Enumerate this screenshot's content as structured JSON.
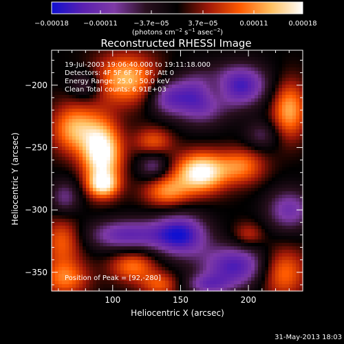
{
  "chart_data": {
    "type": "heatmap",
    "title": "Reconstructed RHESSI Image",
    "xlabel": "Heliocentric X (arcsec)",
    "ylabel": "Heliocentric Y (arcsec)",
    "xlim": [
      55,
      240
    ],
    "ylim": [
      -365,
      -172
    ],
    "x_ticks": [
      100,
      150,
      200
    ],
    "y_ticks": [
      -350,
      -300,
      -250,
      -200
    ],
    "colorbar": {
      "range": [
        -0.00018,
        0.00018
      ],
      "tick_values": [
        -0.00018,
        -0.00011,
        -3.7e-05,
        3.7e-05,
        0.00011,
        0.00018
      ],
      "tick_labels": [
        "−0.00018",
        "−0.00011",
        "−3.7e−05",
        "3.7e−05",
        "0.00011",
        "0.00018"
      ],
      "unit_main": "(photons cm",
      "unit_exp1": "−2",
      "unit_mid": " s",
      "unit_exp2": "−1",
      "unit_mid2": " asec",
      "unit_exp3": "−2",
      "unit_end": ")",
      "colors": [
        "#1010d0",
        "#5a20b0",
        "#7e3aa6",
        "#2a1020",
        "#000000",
        "#a01808",
        "#ff5a00",
        "#ffc060",
        "#ffffff"
      ]
    },
    "annotations": [
      "19-Jul-2003 19:06:40.000 to 19:11:18.000",
      "Detectors: 4F 5F 6F 7F 8F, Att 0",
      "Energy Range: 25.0 - 50.0 keV",
      "Clean    Total counts: 6.91E+03"
    ],
    "peak_label": "Position of Peak = [92,-280]",
    "peak_position": [
      92,
      -280
    ],
    "components": [
      {
        "x": 92,
        "y": -255,
        "sx": 10,
        "sy": 18,
        "amp": 1.1
      },
      {
        "x": 93,
        "y": -280,
        "sx": 8,
        "sy": 7,
        "amp": 0.7
      },
      {
        "x": 72,
        "y": -235,
        "sx": 12,
        "sy": 14,
        "amp": 0.7
      },
      {
        "x": 110,
        "y": -195,
        "sx": 16,
        "sy": 14,
        "amp": 0.75
      },
      {
        "x": 165,
        "y": -270,
        "sx": 13,
        "sy": 11,
        "amp": 1.05
      },
      {
        "x": 140,
        "y": -285,
        "sx": 12,
        "sy": 9,
        "amp": 0.6
      },
      {
        "x": 195,
        "y": -265,
        "sx": 12,
        "sy": 10,
        "amp": 0.55
      },
      {
        "x": 230,
        "y": -220,
        "sx": 9,
        "sy": 16,
        "amp": 0.7
      },
      {
        "x": 130,
        "y": -245,
        "sx": 10,
        "sy": 8,
        "amp": 0.45
      },
      {
        "x": 63,
        "y": -325,
        "sx": 10,
        "sy": 14,
        "amp": 0.5
      },
      {
        "x": 65,
        "y": -355,
        "sx": 12,
        "sy": 10,
        "amp": 0.55
      },
      {
        "x": 115,
        "y": -345,
        "sx": 12,
        "sy": 9,
        "amp": 0.55
      },
      {
        "x": 135,
        "y": -360,
        "sx": 10,
        "sy": 7,
        "amp": 0.45
      },
      {
        "x": 225,
        "y": -350,
        "sx": 12,
        "sy": 14,
        "amp": 0.6
      },
      {
        "x": 200,
        "y": -320,
        "sx": 8,
        "sy": 7,
        "amp": 0.35
      },
      {
        "x": 175,
        "y": -205,
        "sx": 9,
        "sy": 9,
        "amp": 0.45
      },
      {
        "x": 165,
        "y": -210,
        "sx": 14,
        "sy": 14,
        "amp": -0.85
      },
      {
        "x": 195,
        "y": -200,
        "sx": 14,
        "sy": 12,
        "amp": -0.8
      },
      {
        "x": 140,
        "y": -210,
        "sx": 10,
        "sy": 10,
        "amp": -0.55
      },
      {
        "x": 110,
        "y": -320,
        "sx": 20,
        "sy": 9,
        "amp": -0.7
      },
      {
        "x": 150,
        "y": -320,
        "sx": 14,
        "sy": 12,
        "amp": -0.9
      },
      {
        "x": 190,
        "y": -345,
        "sx": 18,
        "sy": 12,
        "amp": -0.8
      },
      {
        "x": 230,
        "y": -300,
        "sx": 12,
        "sy": 12,
        "amp": -0.6
      },
      {
        "x": 130,
        "y": -265,
        "sx": 8,
        "sy": 8,
        "amp": -0.45
      },
      {
        "x": 65,
        "y": -290,
        "sx": 8,
        "sy": 10,
        "amp": -0.45
      },
      {
        "x": 80,
        "y": -200,
        "sx": 8,
        "sy": 8,
        "amp": -0.4
      },
      {
        "x": 210,
        "y": -240,
        "sx": 9,
        "sy": 8,
        "amp": -0.35
      },
      {
        "x": 170,
        "y": -360,
        "sx": 12,
        "sy": 6,
        "amp": -0.5
      }
    ]
  },
  "footer": {
    "timestamp": "31-May-2013 18:03"
  }
}
